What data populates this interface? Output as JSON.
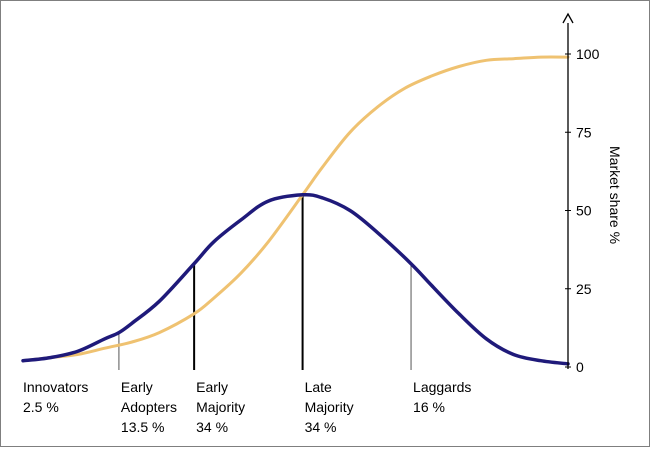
{
  "chart_data": {
    "type": "line",
    "title": "",
    "xlabel": "",
    "ylabel": "Market share %",
    "ylim": [
      0,
      100
    ],
    "yticks": [
      0,
      25,
      50,
      75,
      100
    ],
    "axis_side": "right",
    "grid": false,
    "legend": "none",
    "x_range": [
      0,
      100
    ],
    "segments": [
      {
        "name": "Innovators",
        "share": "2.5 %",
        "lines": [
          "Innovators",
          "2.5 %"
        ],
        "boundary_x": 0,
        "divider": false
      },
      {
        "name": "Early Adopters",
        "share": "13.5 %",
        "lines": [
          "Early",
          "Adopters",
          "13.5 %"
        ],
        "boundary_x": 17.6,
        "divider": true
      },
      {
        "name": "Early Majority",
        "share": "34 %",
        "lines": [
          "Early",
          "Majority",
          "34 %"
        ],
        "boundary_x": 31.4,
        "divider": true
      },
      {
        "name": "Late Majority",
        "share": "34 %",
        "lines": [
          "Late",
          "Majority",
          "34 %"
        ],
        "boundary_x": 51.3,
        "divider": true
      },
      {
        "name": "Laggards",
        "share": "16 %",
        "lines": [
          "Laggards",
          "16 %"
        ],
        "boundary_x": 71.2,
        "divider": true
      }
    ],
    "series": [
      {
        "name": "",
        "kind": "adoption-bell",
        "color": "#1f1a7a",
        "x": [
          0,
          5,
          10,
          15,
          17.6,
          20,
          25,
          31.4,
          35,
          40,
          45,
          51.3,
          55,
          60,
          65,
          71.2,
          75,
          80,
          85,
          90,
          95,
          100
        ],
        "y": [
          2,
          3,
          5,
          9,
          11,
          14,
          21,
          33,
          40,
          47,
          53,
          55,
          54,
          50,
          43,
          33,
          26,
          17,
          9,
          4,
          2,
          1
        ]
      },
      {
        "name": "",
        "kind": "cumulative-share",
        "color": "#efc271",
        "x": [
          0,
          5,
          10,
          15,
          20,
          25,
          31.4,
          35,
          40,
          45,
          51.3,
          55,
          60,
          65,
          70,
          75,
          80,
          85,
          90,
          95,
          100
        ],
        "y": [
          2,
          3,
          4,
          6,
          8,
          11,
          17,
          22,
          30,
          40,
          55,
          64,
          75,
          83,
          89,
          93,
          96,
          98,
          98.5,
          99,
          99
        ]
      }
    ]
  }
}
